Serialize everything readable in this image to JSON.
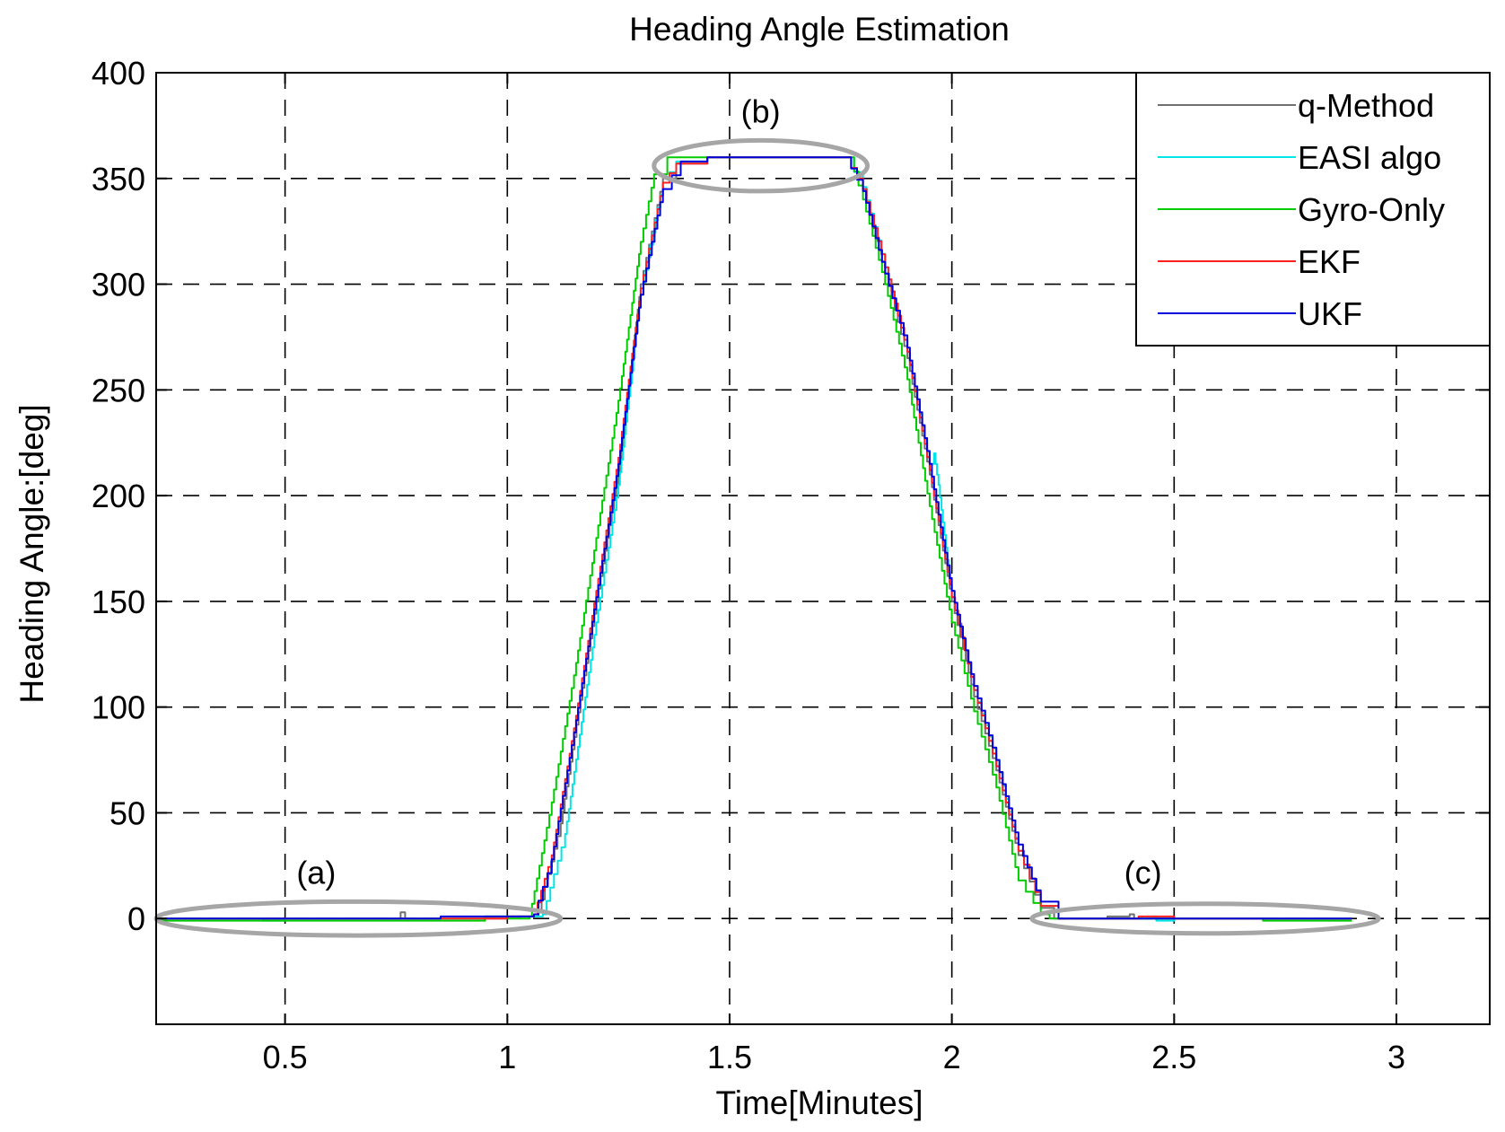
{
  "chart_data": {
    "type": "line",
    "title": "Heading Angle Estimation",
    "xlabel": "Time[Minutes]",
    "ylabel": "Heading Angle:[deg]",
    "xlim": [
      0.21,
      3.21
    ],
    "ylim": [
      -50,
      400
    ],
    "xticks": [
      0.5,
      1,
      1.5,
      2,
      2.5,
      3
    ],
    "xtick_labels": [
      "0.5",
      "1",
      "1.5",
      "2",
      "2.5",
      "3"
    ],
    "yticks": [
      0,
      50,
      100,
      150,
      200,
      250,
      300,
      350,
      400
    ],
    "ytick_labels": [
      "0",
      "50",
      "100",
      "150",
      "200",
      "250",
      "300",
      "350",
      "400"
    ],
    "grid": true,
    "legend_position": "top-right",
    "series": [
      {
        "name": "q-Method",
        "color": "#707070",
        "x": [
          0.21,
          0.5,
          0.75,
          0.76,
          0.77,
          1.0,
          1.07,
          1.12,
          1.2,
          1.25,
          1.3,
          1.35,
          1.38,
          1.45,
          1.5,
          1.6,
          1.7,
          1.76,
          1.8,
          1.85,
          1.9,
          1.95,
          2.0,
          2.05,
          2.1,
          2.15,
          2.2,
          2.23,
          2.35,
          2.4,
          2.41,
          2.5,
          2.9
        ],
        "y": [
          0,
          0,
          0,
          3,
          0,
          1,
          3,
          45,
          150,
          210,
          300,
          350,
          357,
          360,
          360,
          360,
          360,
          360,
          345,
          305,
          265,
          210,
          150,
          105,
          70,
          30,
          5,
          0,
          1,
          2,
          0,
          0,
          0
        ]
      },
      {
        "name": "EASI algo",
        "color": "#00e6e6",
        "x": [
          0.21,
          0.45,
          0.5,
          0.8,
          0.95,
          1.0,
          1.08,
          1.13,
          1.2,
          1.25,
          1.3,
          1.35,
          1.38,
          1.45,
          1.5,
          1.6,
          1.7,
          1.76,
          1.8,
          1.85,
          1.9,
          1.95,
          1.96,
          1.97,
          2.0,
          2.05,
          2.1,
          2.15,
          2.2,
          2.24,
          2.45,
          2.46,
          2.5,
          2.9
        ],
        "y": [
          0,
          -1,
          0,
          0,
          1,
          1,
          2,
          40,
          140,
          205,
          295,
          348,
          358,
          360,
          360,
          360,
          360,
          360,
          346,
          308,
          268,
          215,
          220,
          205,
          152,
          108,
          75,
          32,
          6,
          0,
          1,
          -1,
          0,
          0
        ]
      },
      {
        "name": "Gyro-Only",
        "color": "#00cc00",
        "x": [
          0.21,
          0.5,
          0.6,
          0.7,
          0.8,
          0.95,
          1.0,
          1.05,
          1.1,
          1.15,
          1.2,
          1.25,
          1.3,
          1.33,
          1.36,
          1.45,
          1.5,
          1.6,
          1.7,
          1.77,
          1.8,
          1.85,
          1.9,
          1.95,
          2.0,
          2.05,
          2.1,
          2.15,
          2.2,
          2.22,
          2.5,
          2.7,
          2.9
        ],
        "y": [
          -1,
          -1,
          -1,
          -1,
          -1,
          1,
          0,
          1,
          55,
          115,
          180,
          245,
          320,
          352,
          360,
          360,
          360,
          360,
          360,
          360,
          340,
          300,
          255,
          195,
          140,
          98,
          62,
          18,
          2,
          0,
          0,
          -1,
          -1
        ]
      },
      {
        "name": "EKF",
        "color": "#ff2020",
        "x": [
          0.21,
          0.5,
          0.8,
          1.0,
          1.06,
          1.1,
          1.15,
          1.2,
          1.25,
          1.3,
          1.35,
          1.38,
          1.45,
          1.5,
          1.6,
          1.7,
          1.76,
          1.8,
          1.85,
          1.9,
          1.95,
          2.0,
          2.05,
          2.1,
          2.15,
          2.2,
          2.24,
          2.4,
          2.42,
          2.5,
          2.65,
          2.9
        ],
        "y": [
          0,
          0,
          0,
          1,
          2,
          30,
          90,
          155,
          218,
          298,
          348,
          357,
          360,
          360,
          360,
          360,
          360,
          345,
          308,
          268,
          212,
          152,
          108,
          72,
          32,
          6,
          0,
          0,
          1,
          0,
          0,
          0
        ]
      },
      {
        "name": "UKF",
        "color": "#0000dd",
        "x": [
          0.21,
          0.5,
          0.8,
          0.85,
          1.0,
          1.06,
          1.1,
          1.15,
          1.2,
          1.25,
          1.3,
          1.35,
          1.39,
          1.45,
          1.5,
          1.6,
          1.7,
          1.76,
          1.8,
          1.85,
          1.9,
          1.95,
          2.0,
          2.05,
          2.1,
          2.15,
          2.2,
          2.24,
          2.5,
          2.7,
          2.9
        ],
        "y": [
          0,
          0,
          0,
          1,
          1,
          2,
          28,
          88,
          152,
          215,
          295,
          345,
          358,
          360,
          360,
          360,
          360,
          360,
          344,
          305,
          270,
          215,
          155,
          110,
          75,
          35,
          8,
          0,
          0,
          0,
          0
        ]
      }
    ],
    "annotations": [
      {
        "label": "(a)",
        "x": 0.57,
        "y": 22,
        "ellipse": {
          "cx": 0.665,
          "cy": 0,
          "rx": 0.455,
          "ry": 8
        }
      },
      {
        "label": "(b)",
        "x": 1.57,
        "y": 382,
        "ellipse": {
          "cx": 1.57,
          "cy": 356,
          "rx": 0.24,
          "ry": 12
        }
      },
      {
        "label": "(c)",
        "x": 2.43,
        "y": 22,
        "ellipse": {
          "cx": 2.57,
          "cy": 0,
          "rx": 0.39,
          "ry": 7
        }
      }
    ],
    "annotation_color": "#a6a6a6"
  }
}
